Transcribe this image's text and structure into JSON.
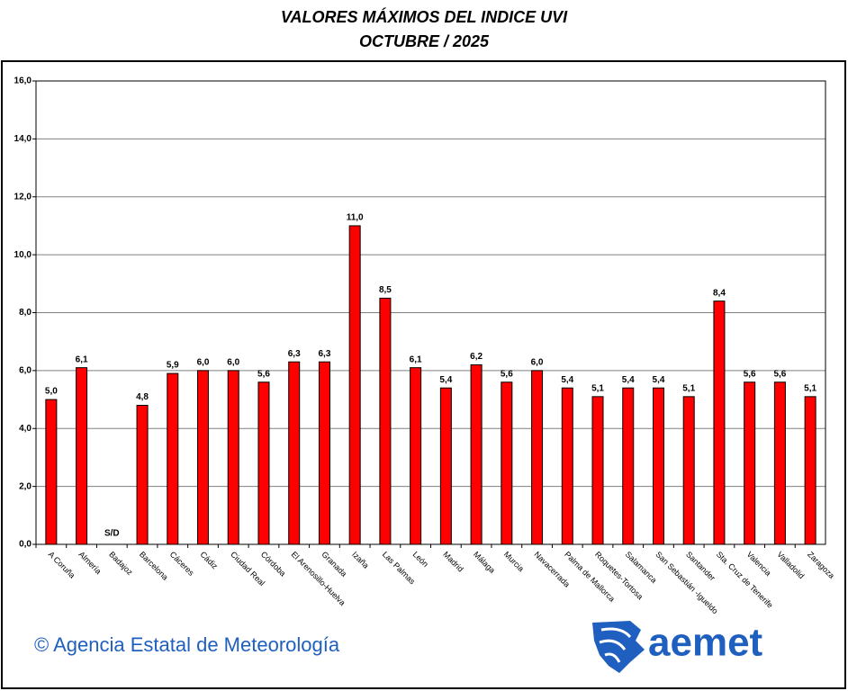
{
  "chart_data": {
    "type": "bar",
    "title": "VALORES MÁXIMOS DEL INDICE  UVI",
    "subtitle": "OCTUBRE / 2025",
    "categories": [
      "A Coruña",
      "Almería",
      "Badajoz",
      "Barcelona",
      "Cáceres",
      "Cádiz",
      "Ciudad Real",
      "Córdoba",
      "El Arenosillo-Huelva",
      "Granada",
      "Izaña",
      "Las Palmas",
      "León",
      "Madrid",
      "Málaga",
      "Murcia",
      "Navacerrada",
      "Palma de Mallorca",
      "Roquetes-Tortosa",
      "Salamanca",
      "San Sebastián -Igueldo",
      "Santander",
      "Sta. Cruz de Tenerife",
      "Valencia",
      "Valladolid",
      "Zaragoza"
    ],
    "values": [
      5.0,
      6.1,
      null,
      4.8,
      5.9,
      6.0,
      6.0,
      5.6,
      6.3,
      6.3,
      11.0,
      8.5,
      6.1,
      5.4,
      6.2,
      5.6,
      6.0,
      5.4,
      5.1,
      5.4,
      5.4,
      5.1,
      8.4,
      5.6,
      5.6,
      5.1
    ],
    "value_labels": [
      "5,0",
      "6,1",
      "S/D",
      "4,8",
      "5,9",
      "6,0",
      "6,0",
      "5,6",
      "6,3",
      "6,3",
      "11,0",
      "8,5",
      "6,1",
      "5,4",
      "6,2",
      "5,6",
      "6,0",
      "5,4",
      "5,1",
      "5,4",
      "5,4",
      "5,1",
      "8,4",
      "5,6",
      "5,6",
      "5,1"
    ],
    "color": "#ff0000",
    "ylim": [
      0,
      16
    ],
    "yticks": [
      {
        "value": 0,
        "label": "0,0"
      },
      {
        "value": 2,
        "label": "2,0"
      },
      {
        "value": 4,
        "label": "4,0"
      },
      {
        "value": 6,
        "label": "6,0"
      },
      {
        "value": 8,
        "label": "8,0"
      },
      {
        "value": 10,
        "label": "10,0"
      },
      {
        "value": 12,
        "label": "12,0"
      },
      {
        "value": 14,
        "label": "14,0"
      },
      {
        "value": 16,
        "label": "16,0"
      }
    ],
    "grid": true,
    "credit": "© Agencia Estatal de Meteorología",
    "logo_text": "aemet"
  }
}
